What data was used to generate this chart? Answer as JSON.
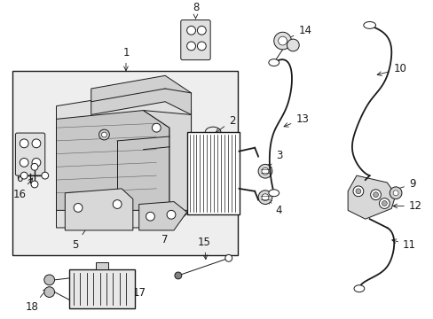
{
  "bg_color": "#ffffff",
  "lc": "#1a1a1a",
  "gray_bg": "#e8e8e8",
  "figsize": [
    4.89,
    3.6
  ],
  "dpi": 100,
  "xlim": [
    0,
    489
  ],
  "ylim": [
    0,
    360
  ]
}
